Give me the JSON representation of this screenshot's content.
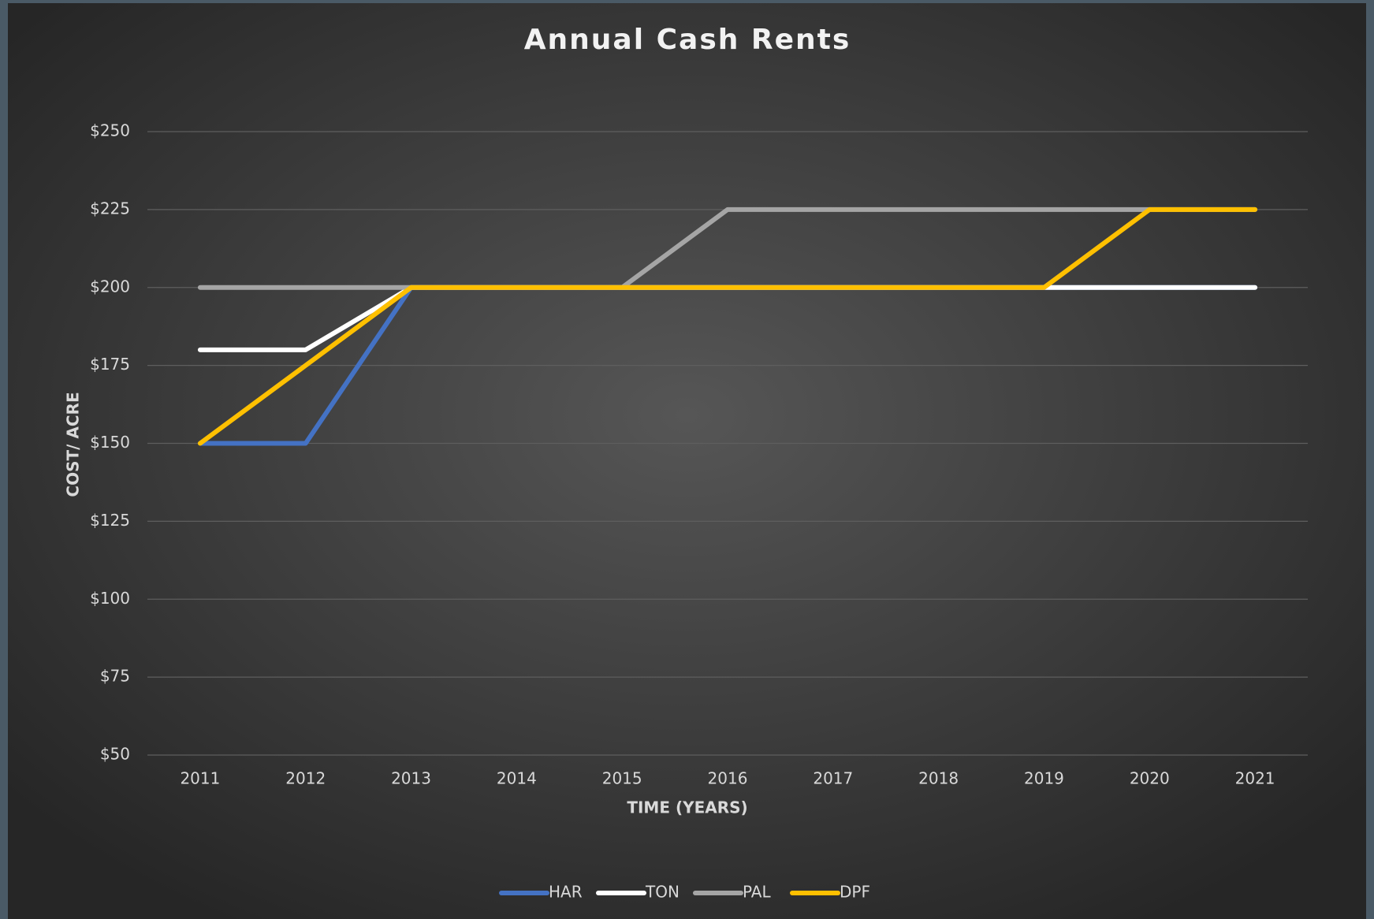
{
  "chart_data": {
    "type": "line",
    "title": "Annual Cash Rents",
    "x_label": "TIME (YEARS)",
    "y_label": "COST/ ACRE",
    "categories": [
      "2011",
      "2012",
      "2013",
      "2014",
      "2015",
      "2016",
      "2017",
      "2018",
      "2019",
      "2020",
      "2021"
    ],
    "series": [
      {
        "name": "HAR",
        "color": "#4472c4",
        "values": [
          150,
          150,
          200,
          200,
          200,
          200,
          200,
          200,
          200,
          200,
          200
        ]
      },
      {
        "name": "TON",
        "color": "#ffffff",
        "values": [
          180,
          180,
          200,
          200,
          200,
          200,
          200,
          200,
          200,
          200,
          200
        ]
      },
      {
        "name": "PAL",
        "color": "#a5a5a5",
        "values": [
          200,
          200,
          200,
          200,
          200,
          225,
          225,
          225,
          225,
          225,
          225
        ]
      },
      {
        "name": "DPF",
        "color": "#ffc000",
        "values": [
          150,
          175,
          200,
          200,
          200,
          200,
          200,
          200,
          200,
          225,
          225
        ]
      }
    ],
    "ylim": [
      50,
      250
    ],
    "yticks": [
      {
        "value": 50,
        "label": "$50"
      },
      {
        "value": 75,
        "label": "$75"
      },
      {
        "value": 100,
        "label": "$100"
      },
      {
        "value": 125,
        "label": "$125"
      },
      {
        "value": 150,
        "label": "$150"
      },
      {
        "value": 175,
        "label": "$175"
      },
      {
        "value": 200,
        "label": "$200"
      },
      {
        "value": 225,
        "label": "$225"
      },
      {
        "value": 250,
        "label": "$250"
      }
    ],
    "grid": true,
    "legend": "bottom"
  }
}
